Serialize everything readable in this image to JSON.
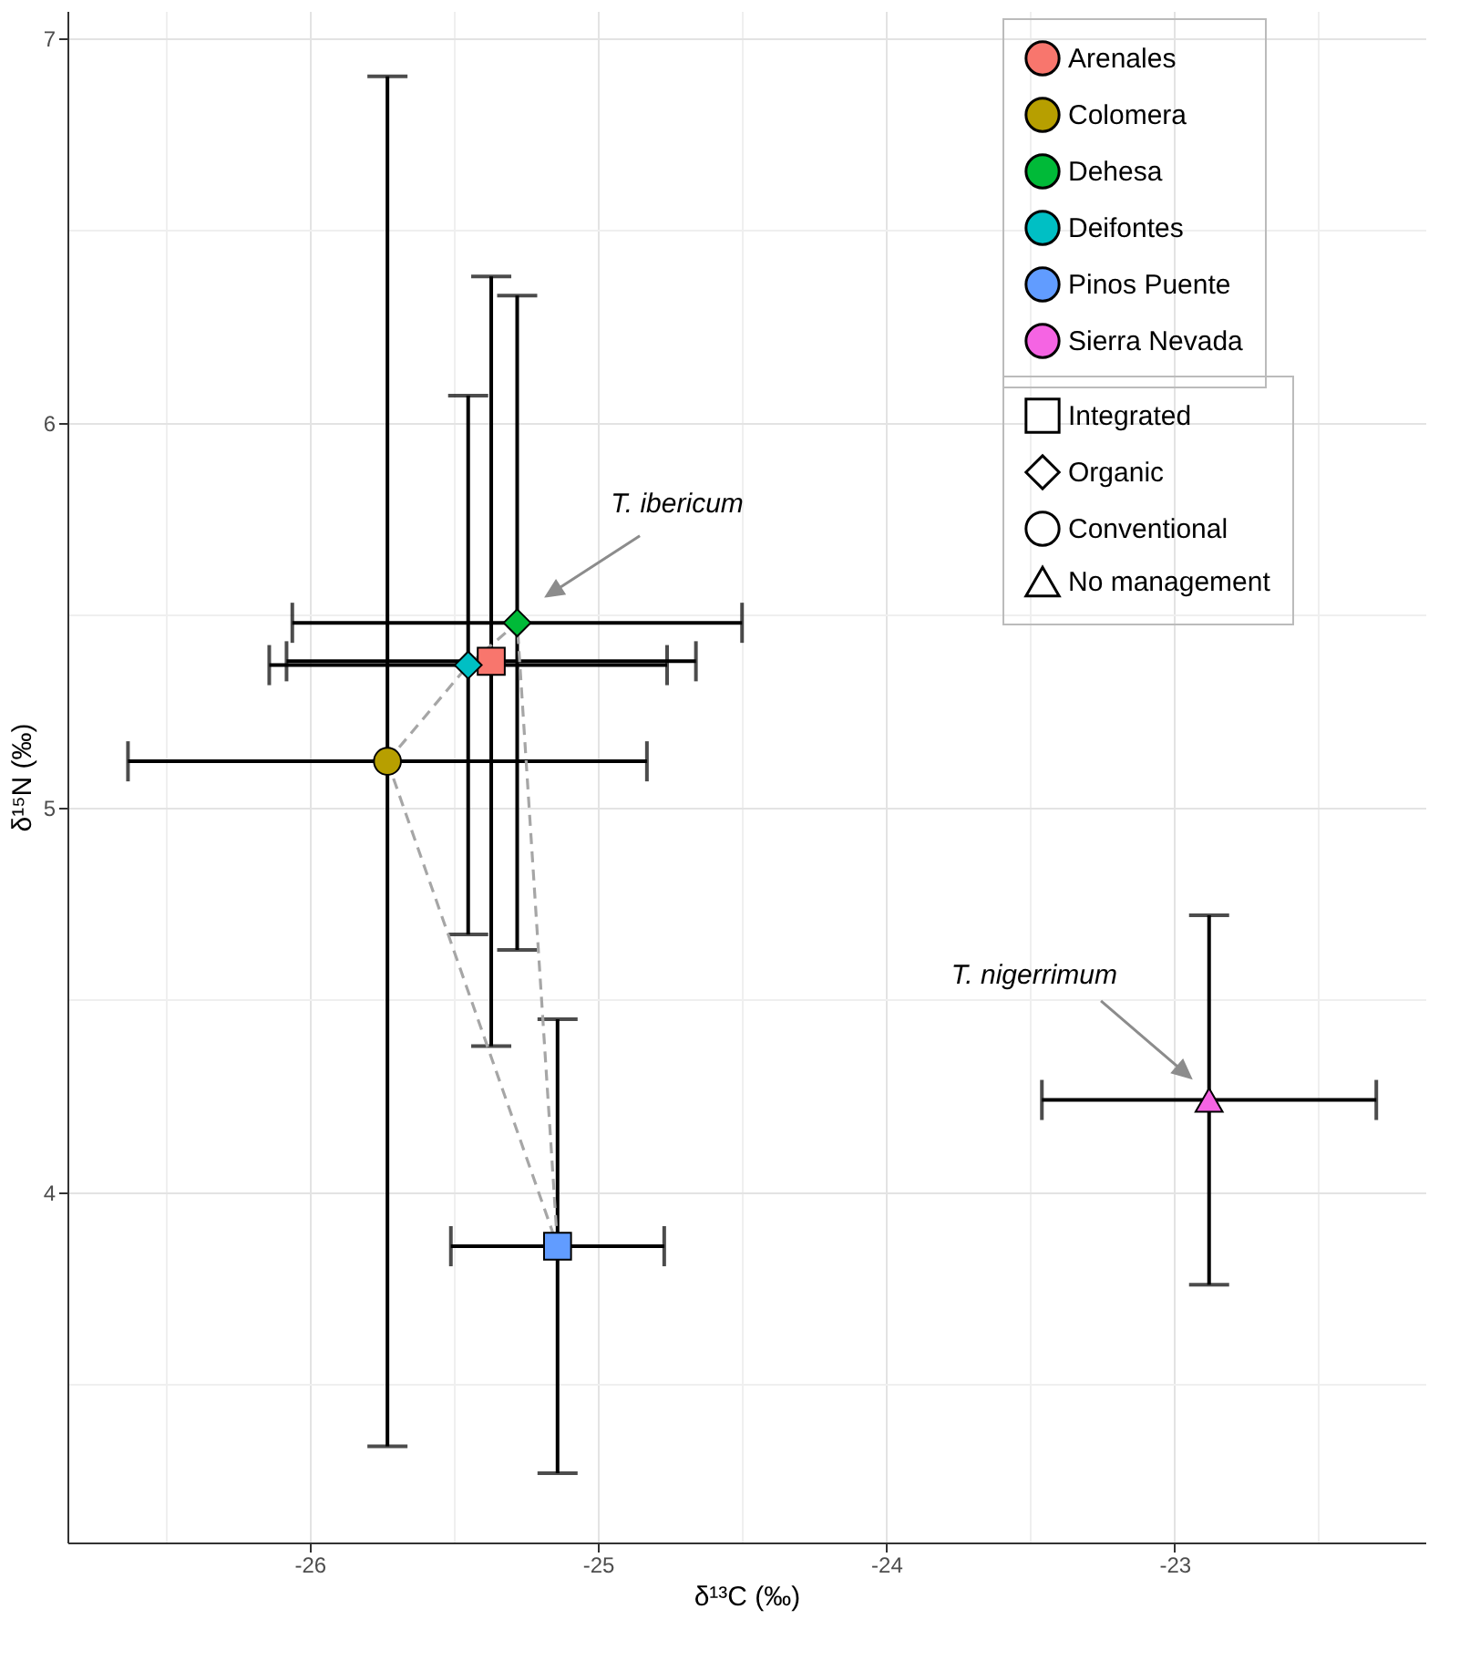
{
  "chart_data": {
    "type": "scatter",
    "xlabel": "δ¹³C (‰)",
    "ylabel": "δ¹⁵N (‰)",
    "xlim": [
      -26.84,
      -22.13
    ],
    "xticks": [
      {
        "value": -26.5,
        "label": null
      },
      -26,
      {
        "value": -25.5,
        "label": null
      },
      -25,
      {
        "value": -24.5,
        "label": null
      },
      -24,
      {
        "value": -23.5,
        "label": null
      },
      -23,
      {
        "value": -22.5,
        "label": null
      }
    ],
    "ylim": [
      3.09,
      7.07
    ],
    "yticks": [
      {
        "value": 3.5,
        "label": null
      },
      4,
      {
        "value": 4.5,
        "label": null
      },
      5,
      {
        "value": 5.5,
        "label": null
      },
      6,
      {
        "value": 6.5,
        "label": null
      },
      7
    ],
    "grid": true,
    "legend": "top right",
    "series": [
      {
        "type": "line",
        "color": "#a6a6a6",
        "line_style": "dashed",
        "x": [
          -25.73,
          -25.45,
          -25.28,
          -25.14
        ],
        "values": [
          5.12,
          5.37,
          5.48,
          3.86
        ]
      },
      {
        "type": "line",
        "color": "#a6a6a6",
        "line_style": "dashed",
        "x": [
          -25.73,
          -25.14
        ],
        "values": [
          5.12,
          3.86
        ]
      },
      {
        "name": "Arenales",
        "color": "#f8766d",
        "marker": "square",
        "x": [
          -25.37
        ],
        "values": [
          5.38
        ],
        "errors": [
          1.0
        ],
        "xerrors": [
          0.71
        ]
      },
      {
        "name": "Colomera",
        "color": "#b79f00",
        "marker": "circle",
        "x": [
          -25.73
        ],
        "values": [
          5.12
        ],
        "errors": [
          1.78
        ],
        "xerrors": [
          0.9
        ]
      },
      {
        "name": "Dehesa",
        "color": "#00ba38",
        "marker": "diamond",
        "x": [
          -25.28
        ],
        "values": [
          5.48
        ],
        "errors": [
          0.85
        ],
        "xerrors": [
          0.78
        ]
      },
      {
        "name": "Deifontes",
        "color": "#00bfc4",
        "marker": "diamond",
        "x": [
          -25.45
        ],
        "values": [
          5.37
        ],
        "errors": [
          0.7
        ],
        "xerrors": [
          0.69
        ]
      },
      {
        "name": "Pinos Puente",
        "color": "#619cff",
        "marker": "square",
        "x": [
          -25.14
        ],
        "values": [
          3.86
        ],
        "errors": [
          0.59
        ],
        "xerrors": [
          0.37
        ]
      },
      {
        "name": "Sierra Nevada",
        "color": "#f564e3",
        "marker": "triangle",
        "x": [
          -22.88
        ],
        "values": [
          4.24
        ],
        "errors": [
          0.48
        ],
        "xerrors": [
          0.58
        ]
      },
      {
        "name": "Integrated",
        "marker": "square"
      },
      {
        "name": "Organic",
        "marker": "diamond"
      },
      {
        "name": "Conventional",
        "marker": "circle"
      },
      {
        "name": "No management",
        "marker": "triangle"
      }
    ],
    "annotations": [
      "T. ibericum",
      "T. nigerrimum"
    ]
  }
}
